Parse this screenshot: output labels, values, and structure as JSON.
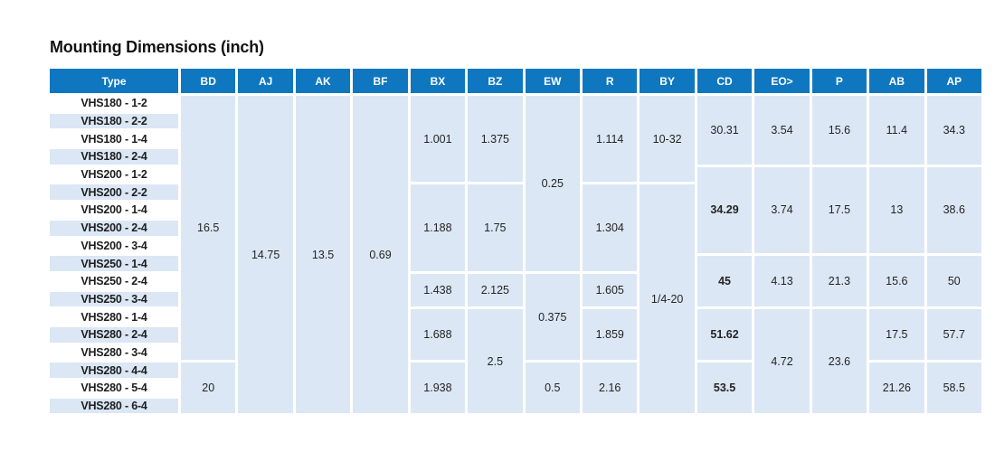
{
  "title": "Mounting Dimensions (inch)",
  "colors": {
    "header_bg": "#0e77c0",
    "cell_bg": "#dbe7f4",
    "header_text": "#ffffff",
    "body_text": "#242424"
  },
  "table": {
    "header": [
      "Type",
      "BD",
      "AJ",
      "AK",
      "BF",
      "BX",
      "BZ",
      "EW",
      "R",
      "BY",
      "CD",
      "EO>",
      "P",
      "AB",
      "AP"
    ],
    "types": [
      "VHS180 - 1-2",
      "VHS180 - 2-2",
      "VHS180 - 1-4",
      "VHS180 - 2-4",
      "VHS200 - 1-2",
      "VHS200 - 2-2",
      "VHS200 - 1-4",
      "VHS200 - 2-4",
      "VHS200 - 3-4",
      "VHS250 - 1-4",
      "VHS250 - 2-4",
      "VHS250 - 3-4",
      "VHS280 - 1-4",
      "VHS280 - 2-4",
      "VHS280 - 3-4",
      "VHS280 - 4-4",
      "VHS280 - 5-4",
      "VHS280 - 6-4"
    ],
    "cells": [
      {
        "col": "BD",
        "row": 1,
        "span": 15,
        "value": "16.5"
      },
      {
        "col": "BD",
        "row": 16,
        "span": 3,
        "value": "20"
      },
      {
        "col": "AJ",
        "row": 1,
        "span": 18,
        "value": "14.75"
      },
      {
        "col": "AK",
        "row": 1,
        "span": 18,
        "value": "13.5"
      },
      {
        "col": "BF",
        "row": 1,
        "span": 18,
        "value": "0.69"
      },
      {
        "col": "BX",
        "row": 1,
        "span": 5,
        "value": "1.001"
      },
      {
        "col": "BX",
        "row": 6,
        "span": 5,
        "value": "1.188"
      },
      {
        "col": "BX",
        "row": 11,
        "span": 2,
        "value": "1.438"
      },
      {
        "col": "BX",
        "row": 13,
        "span": 3,
        "value": "1.688"
      },
      {
        "col": "BX",
        "row": 16,
        "span": 3,
        "value": "1.938"
      },
      {
        "col": "BZ",
        "row": 1,
        "span": 5,
        "value": "1.375"
      },
      {
        "col": "BZ",
        "row": 6,
        "span": 5,
        "value": "1.75"
      },
      {
        "col": "BZ",
        "row": 11,
        "span": 2,
        "value": "2.125"
      },
      {
        "col": "BZ",
        "row": 13,
        "span": 6,
        "value": "2.5"
      },
      {
        "col": "EW",
        "row": 1,
        "span": 10,
        "value": "0.25"
      },
      {
        "col": "EW",
        "row": 11,
        "span": 5,
        "value": "0.375"
      },
      {
        "col": "EW",
        "row": 16,
        "span": 3,
        "value": "0.5"
      },
      {
        "col": "R",
        "row": 1,
        "span": 5,
        "value": "1.114"
      },
      {
        "col": "R",
        "row": 6,
        "span": 5,
        "value": "1.304"
      },
      {
        "col": "R",
        "row": 11,
        "span": 2,
        "value": "1.605"
      },
      {
        "col": "R",
        "row": 13,
        "span": 3,
        "value": "1.859"
      },
      {
        "col": "R",
        "row": 16,
        "span": 3,
        "value": "2.16"
      },
      {
        "col": "BY",
        "row": 1,
        "span": 5,
        "value": "10-32"
      },
      {
        "col": "BY",
        "row": 6,
        "span": 13,
        "value": "1/4-20"
      },
      {
        "col": "CD",
        "row": 1,
        "span": 4,
        "value": "30.31"
      },
      {
        "col": "CD",
        "row": 5,
        "span": 5,
        "value": "34.29",
        "bold": true
      },
      {
        "col": "CD",
        "row": 10,
        "span": 3,
        "value": "45",
        "bold": true
      },
      {
        "col": "CD",
        "row": 13,
        "span": 3,
        "value": "51.62",
        "bold": true
      },
      {
        "col": "CD",
        "row": 16,
        "span": 3,
        "value": "53.5",
        "bold": true
      },
      {
        "col": "EO>",
        "row": 1,
        "span": 4,
        "value": "3.54"
      },
      {
        "col": "EO>",
        "row": 5,
        "span": 5,
        "value": "3.74"
      },
      {
        "col": "EO>",
        "row": 10,
        "span": 3,
        "value": "4.13"
      },
      {
        "col": "EO>",
        "row": 13,
        "span": 6,
        "value": "4.72"
      },
      {
        "col": "P",
        "row": 1,
        "span": 4,
        "value": "15.6"
      },
      {
        "col": "P",
        "row": 5,
        "span": 5,
        "value": "17.5"
      },
      {
        "col": "P",
        "row": 10,
        "span": 3,
        "value": "21.3"
      },
      {
        "col": "P",
        "row": 13,
        "span": 6,
        "value": "23.6"
      },
      {
        "col": "AB",
        "row": 1,
        "span": 4,
        "value": "11.4"
      },
      {
        "col": "AB",
        "row": 5,
        "span": 5,
        "value": "13"
      },
      {
        "col": "AB",
        "row": 10,
        "span": 3,
        "value": "15.6"
      },
      {
        "col": "AB",
        "row": 13,
        "span": 3,
        "value": "17.5"
      },
      {
        "col": "AB",
        "row": 16,
        "span": 3,
        "value": "21.26"
      },
      {
        "col": "AP",
        "row": 1,
        "span": 4,
        "value": "34.3"
      },
      {
        "col": "AP",
        "row": 5,
        "span": 5,
        "value": "38.6"
      },
      {
        "col": "AP",
        "row": 10,
        "span": 3,
        "value": "50"
      },
      {
        "col": "AP",
        "row": 13,
        "span": 3,
        "value": "57.7"
      },
      {
        "col": "AP",
        "row": 16,
        "span": 3,
        "value": "58.5"
      }
    ]
  }
}
